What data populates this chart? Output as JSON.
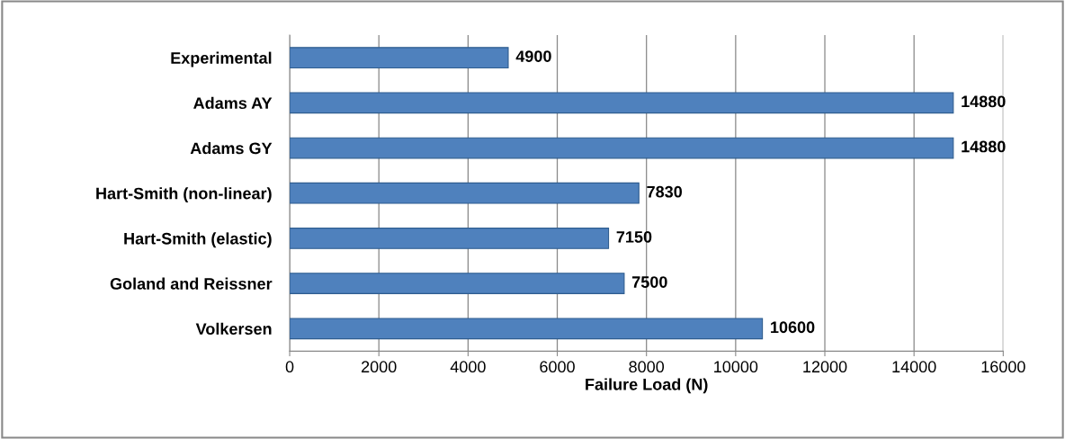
{
  "chart_data": {
    "type": "bar",
    "orientation": "horizontal",
    "xlabel": "Failure Load (N)",
    "categories": [
      "Experimental",
      "Adams AY",
      "Adams GY",
      "Hart-Smith (non-linear)",
      "Hart-Smith (elastic)",
      "Goland and Reissner",
      "Volkersen"
    ],
    "values": [
      4900,
      14880,
      14880,
      7830,
      7150,
      7500,
      10600
    ],
    "color": "#4f81bd",
    "xlim": [
      0,
      16000
    ],
    "xticks": [
      0,
      2000,
      4000,
      6000,
      8000,
      10000,
      12000,
      14000,
      16000
    ],
    "grid": "x",
    "data_labels": true
  }
}
